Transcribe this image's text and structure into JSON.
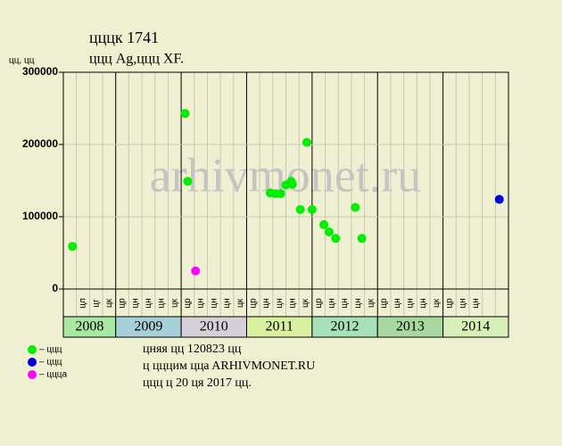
{
  "chart_data": {
    "type": "scatter",
    "title": "цццк 1741",
    "subtitle": "ццц Ag,ццц XF.",
    "y_label": "цц, цц",
    "watermark": "arhivmonet.ru",
    "years": [
      {
        "year": "2008",
        "color": "#a8e8a0",
        "months": [
          null,
          "цл",
          "цг",
          "цк"
        ]
      },
      {
        "year": "2009",
        "color": "#a8d0d8",
        "months": [
          "цр",
          "цн",
          "цн",
          "цн",
          "цк"
        ]
      },
      {
        "year": "2010",
        "color": "#d8d0d8",
        "months": [
          "цр",
          "цн",
          "цн",
          "цн",
          "цк"
        ]
      },
      {
        "year": "2011",
        "color": "#d8f0a0",
        "months": [
          "цр",
          "цн",
          "цн",
          "цн",
          "цк"
        ]
      },
      {
        "year": "2012",
        "color": "#a8e0b8",
        "months": [
          "цр",
          "цн",
          "цн",
          "цн",
          "цк"
        ]
      },
      {
        "year": "2013",
        "color": "#a8d8a0",
        "months": [
          "цр",
          "цн",
          "цн",
          "цн",
          "цк"
        ]
      },
      {
        "year": "2014",
        "color": "#d8f0b8",
        "months": [
          "цр",
          "цн",
          "цн",
          null,
          null
        ]
      }
    ],
    "xlim": [
      0,
      34
    ],
    "ylim": [
      0,
      300000
    ],
    "yticks": [
      0,
      100000,
      200000,
      300000
    ],
    "grid": true,
    "series": [
      {
        "name": "– ццц",
        "color": "#00ee00",
        "x": [
          0.7,
          9.3,
          9.5,
          15.8,
          16.2,
          16.6,
          17.0,
          17.4,
          17.5,
          18.1,
          18.6,
          19.0,
          19.9,
          20.3,
          20.8,
          22.3,
          22.8
        ],
        "values": [
          59000,
          243000,
          149000,
          133000,
          132000,
          132000,
          144000,
          149000,
          145000,
          110000,
          203000,
          110000,
          89000,
          79000,
          70000,
          113000,
          70000
        ]
      },
      {
        "name": "– ццц",
        "color": "#0000dd",
        "x": [
          33.3
        ],
        "values": [
          124000
        ]
      },
      {
        "name": "– цццa",
        "color": "#ff00ff",
        "x": [
          10.1
        ],
        "values": [
          25000
        ]
      }
    ],
    "notes": [
      "цняя цц 120823 цц",
      "ц цццим ццa ARHIVMONET.RU",
      "ццц ц 20 ця 2017 цц."
    ]
  }
}
